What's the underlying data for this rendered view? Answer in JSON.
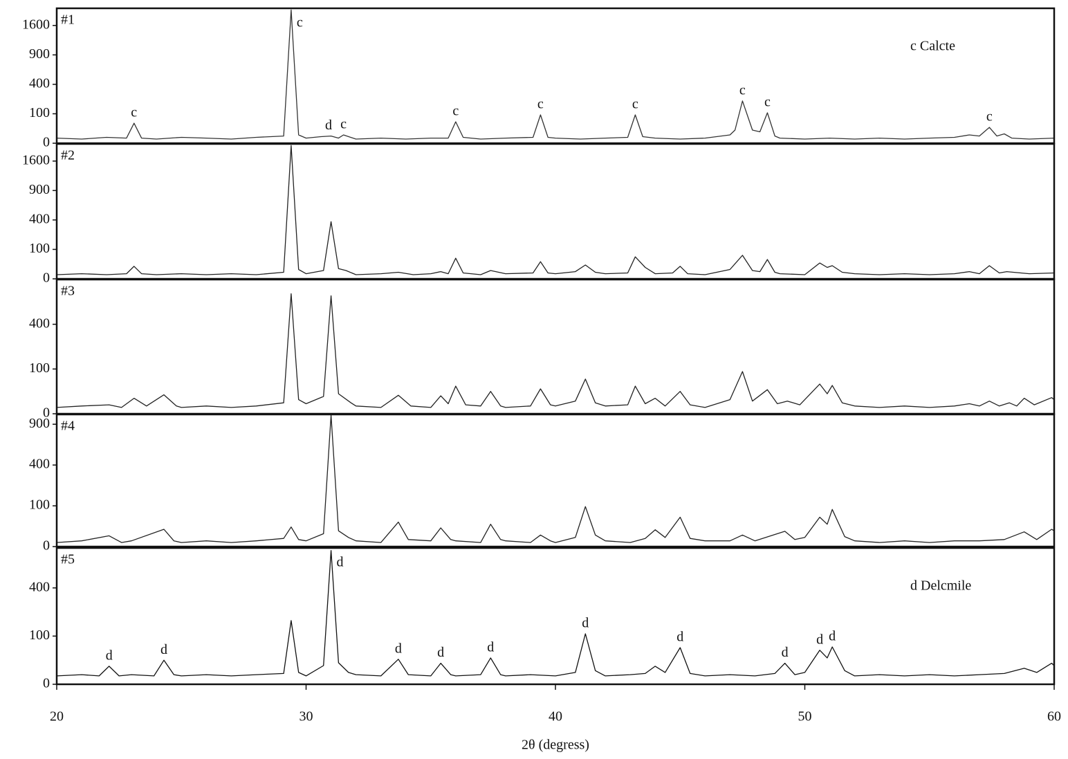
{
  "chart_data": [
    {
      "type": "line",
      "label": "#1",
      "note": "c Calcte",
      "yscale": "sqrt",
      "xlim": [
        20,
        60
      ],
      "ylim": [
        0,
        2100
      ],
      "yticks": [
        0,
        100,
        400,
        900,
        1600
      ],
      "x": [
        20,
        21,
        22,
        22.8,
        23.1,
        23.4,
        24,
        25,
        26,
        27,
        28,
        29.1,
        29.4,
        29.7,
        30,
        30.6,
        31.0,
        31.3,
        31.5,
        32,
        33,
        34,
        35,
        35.7,
        36.0,
        36.3,
        37,
        38,
        39.1,
        39.4,
        39.7,
        40,
        41,
        42,
        42.9,
        43.2,
        43.5,
        44,
        45,
        46,
        47,
        47.2,
        47.5,
        47.9,
        48.2,
        48.5,
        48.8,
        49,
        50,
        51,
        52,
        53,
        54,
        55,
        56,
        56.6,
        57,
        57.4,
        57.7,
        58.0,
        58.3,
        59,
        60
      ],
      "series": [
        {
          "color": "#333333",
          "values": [
            3,
            2,
            4,
            3,
            46,
            3,
            2,
            4,
            3,
            2,
            4,
            6,
            2050,
            8,
            3,
            5,
            6,
            3,
            8,
            2,
            3,
            2,
            3,
            3,
            53,
            4,
            2,
            3,
            4,
            93,
            4,
            3,
            2,
            3,
            4,
            93,
            5,
            3,
            2,
            3,
            8,
            20,
            206,
            20,
            15,
            107,
            6,
            3,
            2,
            3,
            2,
            3,
            2,
            3,
            4,
            8,
            6,
            29,
            6,
            10,
            3,
            2,
            3
          ]
        }
      ],
      "annotations": [
        {
          "x": 23.1,
          "text": "c"
        },
        {
          "x": 29.4,
          "text": "c"
        },
        {
          "x": 30.9,
          "text": "d"
        },
        {
          "x": 31.5,
          "text": "c"
        },
        {
          "x": 36.0,
          "text": "c"
        },
        {
          "x": 39.4,
          "text": "c"
        },
        {
          "x": 43.2,
          "text": "c"
        },
        {
          "x": 47.5,
          "text": "c"
        },
        {
          "x": 48.5,
          "text": "c"
        },
        {
          "x": 57.4,
          "text": "c"
        }
      ]
    },
    {
      "type": "line",
      "label": "#2",
      "yscale": "sqrt",
      "xlim": [
        20,
        60
      ],
      "ylim": [
        0,
        2100
      ],
      "yticks": [
        0,
        100,
        400,
        900,
        1600
      ],
      "x": [
        20,
        21,
        22,
        22.8,
        23.1,
        23.4,
        24,
        25,
        26,
        27,
        28,
        29.1,
        29.4,
        29.7,
        30,
        30.7,
        31.0,
        31.3,
        31.6,
        32,
        33,
        33.7,
        34.3,
        35,
        35.4,
        35.7,
        36.0,
        36.3,
        37,
        37.4,
        38,
        39.1,
        39.4,
        39.7,
        40,
        40.8,
        41.2,
        41.6,
        42,
        42.9,
        43.2,
        43.6,
        44,
        44.7,
        45.0,
        45.3,
        46,
        47,
        47.5,
        47.9,
        48.2,
        48.5,
        48.8,
        49,
        50,
        50.6,
        50.9,
        51.1,
        51.5,
        52,
        53,
        54,
        55,
        56,
        56.6,
        57,
        57.4,
        57.8,
        58.1,
        59,
        60
      ],
      "series": [
        {
          "color": "#222222",
          "values": [
            2,
            3,
            2,
            3,
            18,
            3,
            2,
            3,
            2,
            3,
            2,
            5,
            2050,
            10,
            3,
            8,
            377,
            12,
            8,
            2,
            3,
            5,
            2,
            3,
            6,
            3,
            49,
            4,
            2,
            8,
            3,
            4,
            34,
            4,
            3,
            6,
            22,
            5,
            3,
            4,
            56,
            15,
            3,
            4,
            18,
            3,
            2,
            10,
            64,
            8,
            6,
            43,
            5,
            3,
            2,
            29,
            15,
            20,
            5,
            3,
            2,
            3,
            2,
            3,
            6,
            3,
            20,
            4,
            6,
            3,
            4
          ]
        }
      ]
    },
    {
      "type": "line",
      "label": "#3",
      "yscale": "sqrt",
      "xlim": [
        20,
        60
      ],
      "ylim": [
        0,
        900
      ],
      "yticks": [
        0,
        100,
        400
      ],
      "x": [
        20,
        21,
        22.1,
        22.6,
        23.1,
        23.6,
        24.3,
        24.8,
        25,
        26,
        27,
        28,
        29.1,
        29.4,
        29.7,
        30,
        30.7,
        31.0,
        31.3,
        31.8,
        32,
        33,
        33.7,
        34.2,
        35,
        35.4,
        35.7,
        36.0,
        36.4,
        37,
        37.4,
        37.8,
        38,
        39,
        39.4,
        39.8,
        40,
        40.8,
        41.2,
        41.6,
        42,
        42.9,
        43.2,
        43.6,
        44.0,
        44.4,
        45.0,
        45.4,
        46,
        47,
        47.5,
        47.9,
        48.5,
        48.9,
        49.3,
        49.8,
        50.6,
        50.9,
        51.1,
        51.5,
        52,
        53,
        54,
        55,
        56,
        56.6,
        57,
        57.4,
        57.8,
        58.2,
        58.5,
        58.8,
        59.2,
        59.9,
        60
      ],
      "series": [
        {
          "color": "#222222",
          "values": [
            2,
            3,
            4,
            2,
            12,
            3,
            18,
            3,
            2,
            3,
            2,
            3,
            6,
            720,
            10,
            5,
            15,
            695,
            20,
            6,
            3,
            2,
            17,
            3,
            2,
            16,
            5,
            38,
            4,
            3,
            25,
            3,
            2,
            3,
            31,
            4,
            3,
            8,
            60,
            6,
            3,
            4,
            38,
            5,
            12,
            3,
            25,
            4,
            2,
            10,
            89,
            8,
            29,
            5,
            8,
            4,
            44,
            20,
            40,
            6,
            3,
            2,
            3,
            2,
            3,
            5,
            3,
            8,
            3,
            6,
            3,
            12,
            4,
            13,
            10
          ]
        }
      ]
    },
    {
      "type": "line",
      "label": "#4",
      "yscale": "sqrt",
      "xlim": [
        20,
        60
      ],
      "ylim": [
        0,
        1050
      ],
      "yticks": [
        0,
        100,
        400,
        900
      ],
      "x": [
        20,
        21,
        22.1,
        22.6,
        23,
        24.3,
        24.7,
        25,
        26,
        27,
        28,
        29.1,
        29.4,
        29.7,
        30,
        30.7,
        31.0,
        31.3,
        31.7,
        32,
        33,
        33.7,
        34.1,
        35,
        35.4,
        35.8,
        36,
        37,
        37.4,
        37.8,
        38,
        39,
        39.4,
        39.8,
        40,
        40.8,
        41.2,
        41.6,
        42,
        43,
        43.6,
        44.0,
        44.4,
        45.0,
        45.4,
        46,
        47,
        47.5,
        48,
        49.2,
        49.6,
        50,
        50.6,
        50.9,
        51.1,
        51.6,
        52,
        53,
        54,
        55,
        56,
        57,
        58,
        58.8,
        59.3,
        59.9,
        60
      ],
      "series": [
        {
          "color": "#222222",
          "values": [
            1,
            2,
            7,
            1,
            2,
            18,
            2,
            1,
            2,
            1,
            2,
            4,
            23,
            3,
            2,
            10,
            1040,
            15,
            5,
            2,
            1,
            36,
            3,
            2,
            21,
            3,
            2,
            1,
            30,
            3,
            2,
            1,
            8,
            2,
            1,
            5,
            96,
            8,
            2,
            1,
            4,
            17,
            5,
            52,
            4,
            2,
            2,
            8,
            2,
            14,
            3,
            5,
            52,
            30,
            83,
            6,
            2,
            1,
            2,
            1,
            2,
            2,
            3,
            13,
            3,
            18,
            15
          ]
        }
      ]
    },
    {
      "type": "line",
      "label": "#5",
      "note": "d Delcmile",
      "yscale": "sqrt",
      "xlim": [
        20,
        60
      ],
      "ylim": [
        0,
        800
      ],
      "yticks": [
        0,
        100,
        400
      ],
      "xticks": [
        20,
        30,
        40,
        50,
        60
      ],
      "x_label": "2θ (degress)",
      "x": [
        20,
        21,
        21.7,
        22.1,
        22.5,
        23,
        23.9,
        24.3,
        24.7,
        25,
        26,
        27,
        28,
        29.1,
        29.4,
        29.7,
        30,
        30.7,
        31.0,
        31.3,
        31.7,
        32,
        33,
        33.7,
        34.1,
        35,
        35.4,
        35.8,
        36,
        37,
        37.4,
        37.8,
        38,
        39,
        40,
        40.8,
        41.2,
        41.6,
        42,
        43,
        43.6,
        44.0,
        44.4,
        45.0,
        45.4,
        46,
        47,
        48,
        48.8,
        49.2,
        49.6,
        50,
        50.6,
        50.9,
        51.1,
        51.6,
        52,
        53,
        54,
        55,
        56,
        57,
        58,
        58.8,
        59.3,
        59.9,
        60
      ],
      "series": [
        {
          "color": "#111111",
          "values": [
            3,
            4,
            3,
            14,
            3,
            4,
            3,
            25,
            4,
            3,
            4,
            3,
            4,
            5,
            175,
            6,
            3,
            15,
            770,
            20,
            6,
            4,
            3,
            27,
            4,
            3,
            19,
            4,
            3,
            4,
            30,
            4,
            3,
            4,
            3,
            6,
            110,
            8,
            3,
            4,
            5,
            14,
            6,
            58,
            5,
            3,
            4,
            3,
            5,
            19,
            4,
            6,
            50,
            30,
            60,
            8,
            3,
            4,
            3,
            4,
            3,
            4,
            5,
            11,
            6,
            19,
            15
          ]
        }
      ],
      "annotations": [
        {
          "x": 22.1,
          "text": "d"
        },
        {
          "x": 24.3,
          "text": "d"
        },
        {
          "x": 31.0,
          "text": "d"
        },
        {
          "x": 33.7,
          "text": "d"
        },
        {
          "x": 35.4,
          "text": "d"
        },
        {
          "x": 37.4,
          "text": "d"
        },
        {
          "x": 41.2,
          "text": "d"
        },
        {
          "x": 45.0,
          "text": "d"
        },
        {
          "x": 49.2,
          "text": "d"
        },
        {
          "x": 50.6,
          "text": "d"
        },
        {
          "x": 51.1,
          "text": "d"
        }
      ]
    }
  ]
}
